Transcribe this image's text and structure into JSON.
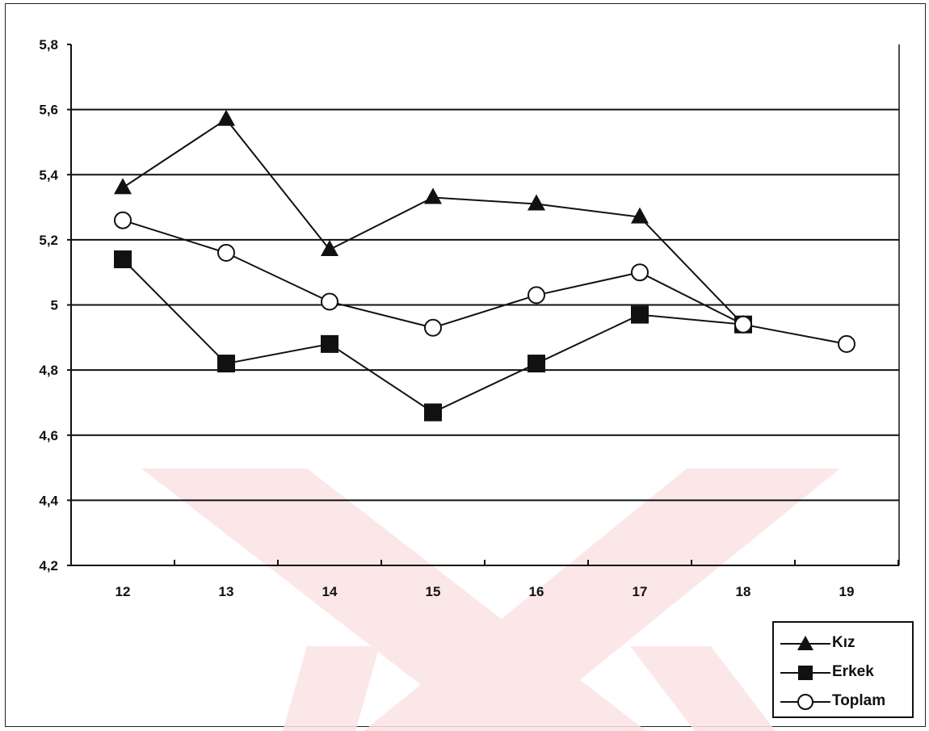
{
  "chart_data": {
    "type": "line",
    "title": "",
    "xlabel": "",
    "ylabel": "",
    "categories": [
      "12",
      "13",
      "14",
      "15",
      "16",
      "17",
      "18",
      "19"
    ],
    "ylim": [
      4.2,
      5.8
    ],
    "yticks": [
      "5,8",
      "5,6",
      "5,4",
      "5,2",
      "5",
      "4,8",
      "4,6",
      "4,4",
      "4,2"
    ],
    "ytick_values": [
      5.8,
      5.6,
      5.4,
      5.2,
      5.0,
      4.8,
      4.6,
      4.4,
      4.2
    ],
    "grid": true,
    "legend_position": "bottom-right",
    "series": [
      {
        "name": "Kız",
        "marker": "triangle",
        "values": [
          5.36,
          5.57,
          5.17,
          5.33,
          5.31,
          5.27,
          4.94,
          null
        ]
      },
      {
        "name": "Erkek",
        "marker": "square",
        "values": [
          5.14,
          4.82,
          4.88,
          4.67,
          4.82,
          4.97,
          4.94,
          null
        ]
      },
      {
        "name": "Toplam",
        "marker": "circle",
        "values": [
          5.26,
          5.16,
          5.01,
          4.93,
          5.03,
          5.1,
          4.94,
          4.88
        ]
      }
    ]
  },
  "colors": {
    "line": "#111111",
    "grid": "#111111",
    "watermark": "#f6c9cc"
  }
}
